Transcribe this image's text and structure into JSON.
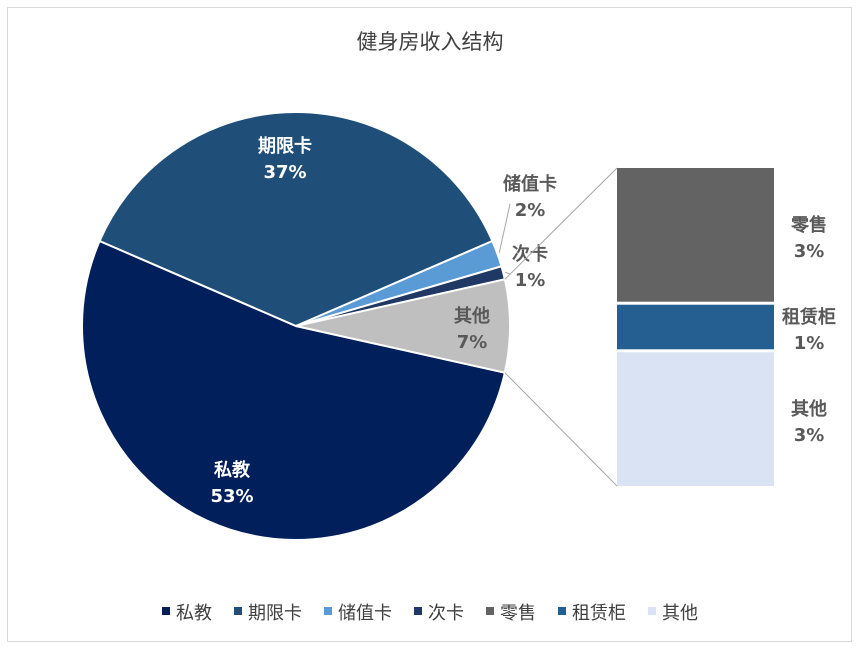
{
  "chart_data": {
    "type": "pie",
    "title": "健身房收入结构",
    "pie_slices": [
      {
        "name": "私教",
        "value": 53,
        "label": "53%",
        "color": "#001f5b",
        "label_color": "#ffffff"
      },
      {
        "name": "期限卡",
        "value": 37,
        "label": "37%",
        "color": "#1f4e79",
        "label_color": "#ffffff"
      },
      {
        "name": "储值卡",
        "value": 2,
        "label": "2%",
        "color": "#5b9bd5",
        "label_color": "#595959"
      },
      {
        "name": "次卡",
        "value": 1,
        "label": "1%",
        "color": "#203864",
        "label_color": "#595959"
      },
      {
        "name": "其他",
        "value": 7,
        "label": "7%",
        "color": "#bfbfbf",
        "label_color": "#595959"
      }
    ],
    "breakdown_of": "其他",
    "breakdown": [
      {
        "name": "零售",
        "value": 3,
        "label": "3%",
        "color": "#636363"
      },
      {
        "name": "租赁柜",
        "value": 1,
        "label": "1%",
        "color": "#255e91"
      },
      {
        "name": "其他",
        "value": 3,
        "label": "3%",
        "color": "#dae3f3"
      }
    ],
    "legend": [
      {
        "name": "私教",
        "color": "#001f5b"
      },
      {
        "name": "期限卡",
        "color": "#1f4e79"
      },
      {
        "name": "储值卡",
        "color": "#5b9bd5"
      },
      {
        "name": "次卡",
        "color": "#203864"
      },
      {
        "name": "零售",
        "color": "#636363"
      },
      {
        "name": "租赁柜",
        "color": "#255e91"
      },
      {
        "name": "其他",
        "color": "#dae3f3"
      }
    ],
    "legend_position": "bottom"
  }
}
